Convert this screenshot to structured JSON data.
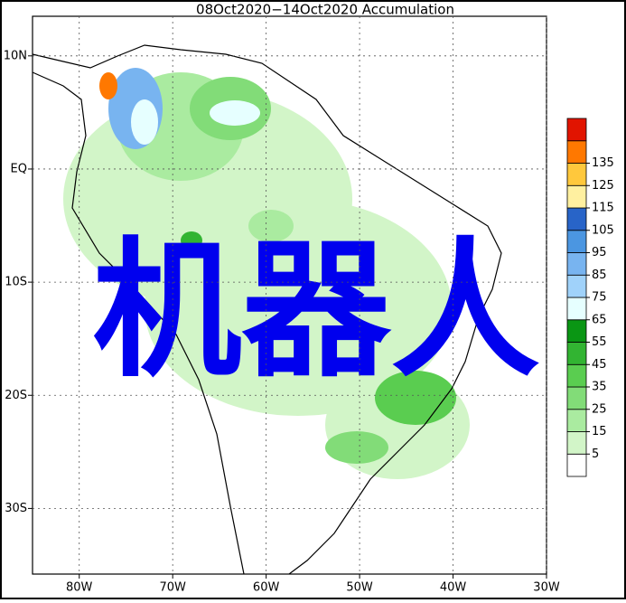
{
  "map": {
    "title": "08Oct2020−14Oct2020 Accumulation",
    "overlay_text": "机器人",
    "xlim": [
      -85,
      -30
    ],
    "ylim": [
      -35.8,
      13.5
    ],
    "xticks": [
      {
        "value": -80,
        "label": "80W"
      },
      {
        "value": -70,
        "label": "70W"
      },
      {
        "value": -60,
        "label": "60W"
      },
      {
        "value": -50,
        "label": "50W"
      },
      {
        "value": -40,
        "label": "40W"
      },
      {
        "value": -30,
        "label": "30W"
      }
    ],
    "yticks": [
      {
        "value": 10,
        "label": "10N"
      },
      {
        "value": 0,
        "label": "EQ"
      },
      {
        "value": -10,
        "label": "10S"
      },
      {
        "value": -20,
        "label": "20S"
      },
      {
        "value": -30,
        "label": "30S"
      }
    ],
    "grid": true,
    "colorbar": {
      "levels": [
        5,
        15,
        25,
        35,
        45,
        55,
        65,
        75,
        85,
        95,
        105,
        115,
        125,
        135
      ],
      "colors": [
        "#ffffff",
        "#d2f5c8",
        "#aaeba0",
        "#82dc78",
        "#5acd50",
        "#32b432",
        "#0a9614",
        "#e6ffff",
        "#a0d2fa",
        "#78b4f0",
        "#4b96e1",
        "#2864c8",
        "#fff0a0",
        "#ffc83c",
        "#ff7800",
        "#e11400"
      ]
    }
  }
}
